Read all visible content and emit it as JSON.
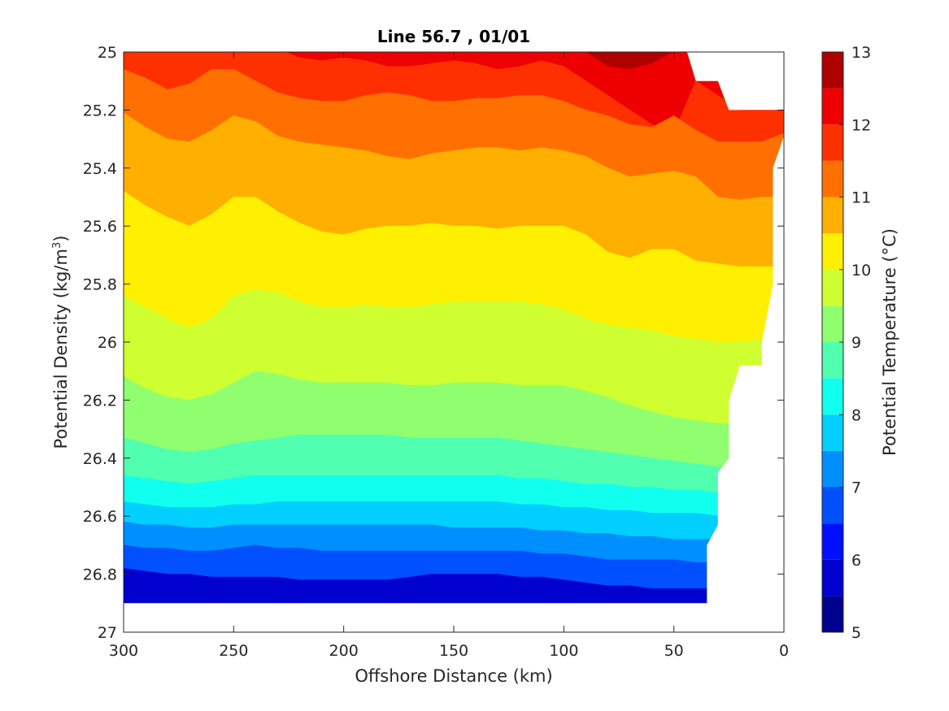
{
  "chart_data": {
    "type": "heatmap",
    "subtype": "filled-contour",
    "title": "Line 56.7 , 01/01",
    "xlabel": "Offshore Distance (km)",
    "ylabel_main": "Potential Density (kg/m",
    "ylabel_sup": "3",
    "ylabel_close": ")",
    "colorbar_label": "Potential Temperature (°C)",
    "xlim": [
      300,
      0
    ],
    "ylim": [
      25,
      27
    ],
    "x_reversed": true,
    "y_reversed": true,
    "x_ticks": [
      "300",
      "250",
      "200",
      "150",
      "100",
      "50",
      "0"
    ],
    "x_tick_values": [
      300,
      250,
      200,
      150,
      100,
      50,
      0
    ],
    "y_ticks": [
      "25",
      "25.2",
      "25.4",
      "25.6",
      "25.8",
      "26",
      "26.2",
      "26.4",
      "26.6",
      "26.8",
      "27"
    ],
    "y_tick_values": [
      25,
      25.2,
      25.4,
      25.6,
      25.8,
      26,
      26.2,
      26.4,
      26.6,
      26.8,
      27
    ],
    "clim": [
      5,
      13
    ],
    "colorbar_ticks": [
      "5",
      "6",
      "7",
      "8",
      "9",
      "10",
      "11",
      "12",
      "13"
    ],
    "colorbar_tick_values": [
      5,
      6,
      7,
      8,
      9,
      10,
      11,
      12,
      13
    ],
    "levels": [
      5,
      5.5,
      6,
      6.5,
      7,
      7.5,
      8,
      8.5,
      9,
      9.5,
      10,
      10.5,
      11,
      11.5,
      12,
      12.5,
      13
    ],
    "colormap": [
      "#00008f",
      "#0000cf",
      "#0010ff",
      "#0050ff",
      "#008fff",
      "#00cfff",
      "#10ffef",
      "#50ffaf",
      "#8fff70",
      "#cfff30",
      "#ffef00",
      "#ffaf00",
      "#ff7000",
      "#ff3000",
      "#ef0000",
      "#af0000"
    ],
    "isoline_x": [
      300,
      290,
      280,
      270,
      260,
      250,
      240,
      230,
      220,
      210,
      200,
      190,
      180,
      170,
      160,
      150,
      140,
      130,
      120,
      110,
      100,
      90,
      80,
      70,
      60,
      50,
      40,
      30,
      20,
      10,
      0
    ],
    "isolines": [
      {
        "temp": 12.5,
        "depth": [
          24.95,
          24.95,
          24.95,
          24.95,
          24.95,
          24.95,
          24.95,
          24.95,
          24.95,
          24.95,
          24.95,
          24.95,
          24.95,
          24.95,
          24.95,
          24.95,
          24.95,
          24.95,
          24.95,
          24.95,
          24.95,
          25.0,
          25.05,
          25.06,
          25.04,
          25.0,
          24.95,
          24.95,
          24.95,
          24.95,
          24.95
        ]
      },
      {
        "temp": 12.0,
        "depth": [
          24.95,
          24.95,
          24.95,
          24.95,
          24.95,
          24.95,
          24.95,
          24.99,
          25.02,
          25.03,
          25.02,
          25.03,
          25.05,
          25.05,
          25.04,
          25.03,
          25.04,
          25.06,
          25.05,
          25.03,
          25.05,
          25.1,
          25.15,
          25.2,
          25.25,
          25.28,
          25.1,
          25.15,
          25.2,
          25.2,
          25.2
        ]
      },
      {
        "temp": 11.5,
        "depth": [
          25.06,
          25.09,
          25.13,
          25.11,
          25.06,
          25.06,
          25.1,
          25.14,
          25.16,
          25.17,
          25.17,
          25.15,
          25.14,
          25.15,
          25.17,
          25.17,
          25.16,
          25.16,
          25.15,
          25.15,
          25.17,
          25.2,
          25.22,
          25.25,
          25.26,
          25.22,
          25.27,
          25.31,
          25.31,
          25.31,
          25.28
        ]
      },
      {
        "temp": 11.0,
        "depth": [
          25.21,
          25.26,
          25.3,
          25.31,
          25.27,
          25.22,
          25.24,
          25.29,
          25.31,
          25.32,
          25.33,
          25.34,
          25.36,
          25.37,
          25.35,
          25.34,
          25.33,
          25.33,
          25.34,
          25.33,
          25.34,
          25.36,
          25.4,
          25.43,
          25.42,
          25.41,
          25.43,
          25.5,
          25.51,
          25.5,
          25.5
        ]
      },
      {
        "temp": 10.5,
        "depth": [
          25.48,
          25.53,
          25.57,
          25.6,
          25.56,
          25.5,
          25.5,
          25.55,
          25.59,
          25.62,
          25.63,
          25.61,
          25.6,
          25.6,
          25.59,
          25.6,
          25.6,
          25.61,
          25.6,
          25.6,
          25.6,
          25.63,
          25.69,
          25.71,
          25.68,
          25.68,
          25.72,
          25.73,
          25.74,
          25.74,
          25.74
        ]
      },
      {
        "temp": 10.0,
        "depth": [
          25.84,
          25.88,
          25.92,
          25.95,
          25.92,
          25.84,
          25.82,
          25.83,
          25.86,
          25.88,
          25.88,
          25.87,
          25.88,
          25.88,
          25.87,
          25.86,
          25.86,
          25.86,
          25.86,
          25.87,
          25.89,
          25.92,
          25.94,
          25.95,
          25.96,
          25.98,
          25.99,
          26.0,
          26.0,
          25.99,
          25.99
        ]
      },
      {
        "temp": 9.5,
        "depth": [
          26.12,
          26.16,
          26.19,
          26.2,
          26.18,
          26.14,
          26.1,
          26.11,
          26.13,
          26.14,
          26.14,
          26.14,
          26.14,
          26.15,
          26.15,
          26.14,
          26.14,
          26.14,
          26.15,
          26.15,
          26.15,
          26.17,
          26.19,
          26.22,
          26.24,
          26.26,
          26.27,
          26.28,
          26.28,
          26.28,
          26.28
        ]
      },
      {
        "temp": 9.0,
        "depth": [
          26.33,
          26.35,
          26.37,
          26.38,
          26.37,
          26.35,
          26.34,
          26.33,
          26.32,
          26.32,
          26.32,
          26.32,
          26.32,
          26.33,
          26.33,
          26.33,
          26.33,
          26.33,
          26.34,
          26.35,
          26.36,
          26.37,
          26.38,
          26.39,
          26.4,
          26.41,
          26.42,
          26.43,
          26.43,
          26.43,
          26.43
        ]
      },
      {
        "temp": 8.5,
        "depth": [
          26.46,
          26.47,
          26.48,
          26.49,
          26.48,
          26.47,
          26.46,
          26.46,
          26.46,
          26.46,
          26.46,
          26.46,
          26.46,
          26.46,
          26.46,
          26.46,
          26.46,
          26.46,
          26.47,
          26.47,
          26.48,
          26.49,
          26.49,
          26.5,
          26.5,
          26.51,
          26.51,
          26.52,
          26.52,
          26.52,
          26.52
        ]
      },
      {
        "temp": 8.0,
        "depth": [
          26.55,
          26.56,
          26.57,
          26.57,
          26.57,
          26.56,
          26.56,
          26.55,
          26.55,
          26.55,
          26.55,
          26.55,
          26.55,
          26.55,
          26.55,
          26.55,
          26.55,
          26.55,
          26.56,
          26.56,
          26.57,
          26.57,
          26.58,
          26.58,
          26.59,
          26.59,
          26.59,
          26.6,
          26.6,
          26.6,
          26.6
        ]
      },
      {
        "temp": 7.5,
        "depth": [
          26.62,
          26.63,
          26.63,
          26.64,
          26.64,
          26.63,
          26.63,
          26.63,
          26.63,
          26.63,
          26.63,
          26.63,
          26.63,
          26.63,
          26.63,
          26.64,
          26.64,
          26.64,
          26.64,
          26.65,
          26.65,
          26.66,
          26.66,
          26.67,
          26.67,
          26.68,
          26.68,
          26.68,
          26.68,
          26.68,
          26.68
        ]
      },
      {
        "temp": 7.0,
        "depth": [
          26.7,
          26.71,
          26.71,
          26.72,
          26.72,
          26.71,
          26.7,
          26.71,
          26.71,
          26.72,
          26.72,
          26.72,
          26.72,
          26.72,
          26.72,
          26.72,
          26.72,
          26.72,
          26.72,
          26.73,
          26.73,
          26.74,
          26.75,
          26.75,
          26.75,
          26.75,
          26.76,
          26.76,
          26.76,
          26.76,
          26.76
        ]
      },
      {
        "temp": 6.5,
        "depth": [
          26.78,
          26.79,
          26.8,
          26.8,
          26.81,
          26.81,
          26.81,
          26.81,
          26.82,
          26.82,
          26.82,
          26.82,
          26.82,
          26.81,
          26.8,
          26.8,
          26.8,
          26.8,
          26.81,
          26.81,
          26.82,
          26.83,
          26.84,
          26.84,
          26.85,
          26.85,
          26.85,
          26.85,
          26.85,
          26.85,
          26.85
        ]
      }
    ],
    "bottom_boundary": 26.9,
    "surface_boundary": 24.95,
    "data_mask_xy": [
      [
        300,
        25
      ],
      [
        44,
        25
      ],
      [
        40,
        25.1
      ],
      [
        30,
        25.1
      ],
      [
        25,
        25.2
      ],
      [
        0,
        25.2
      ],
      [
        0,
        25.29
      ],
      [
        5,
        25.4
      ],
      [
        5,
        25.8
      ],
      [
        10,
        26.0
      ],
      [
        10,
        26.08
      ],
      [
        20,
        26.08
      ],
      [
        25,
        26.2
      ],
      [
        25,
        26.4
      ],
      [
        30,
        26.45
      ],
      [
        30,
        26.63
      ],
      [
        35,
        26.7
      ],
      [
        35,
        26.9
      ],
      [
        300,
        26.9
      ]
    ]
  }
}
